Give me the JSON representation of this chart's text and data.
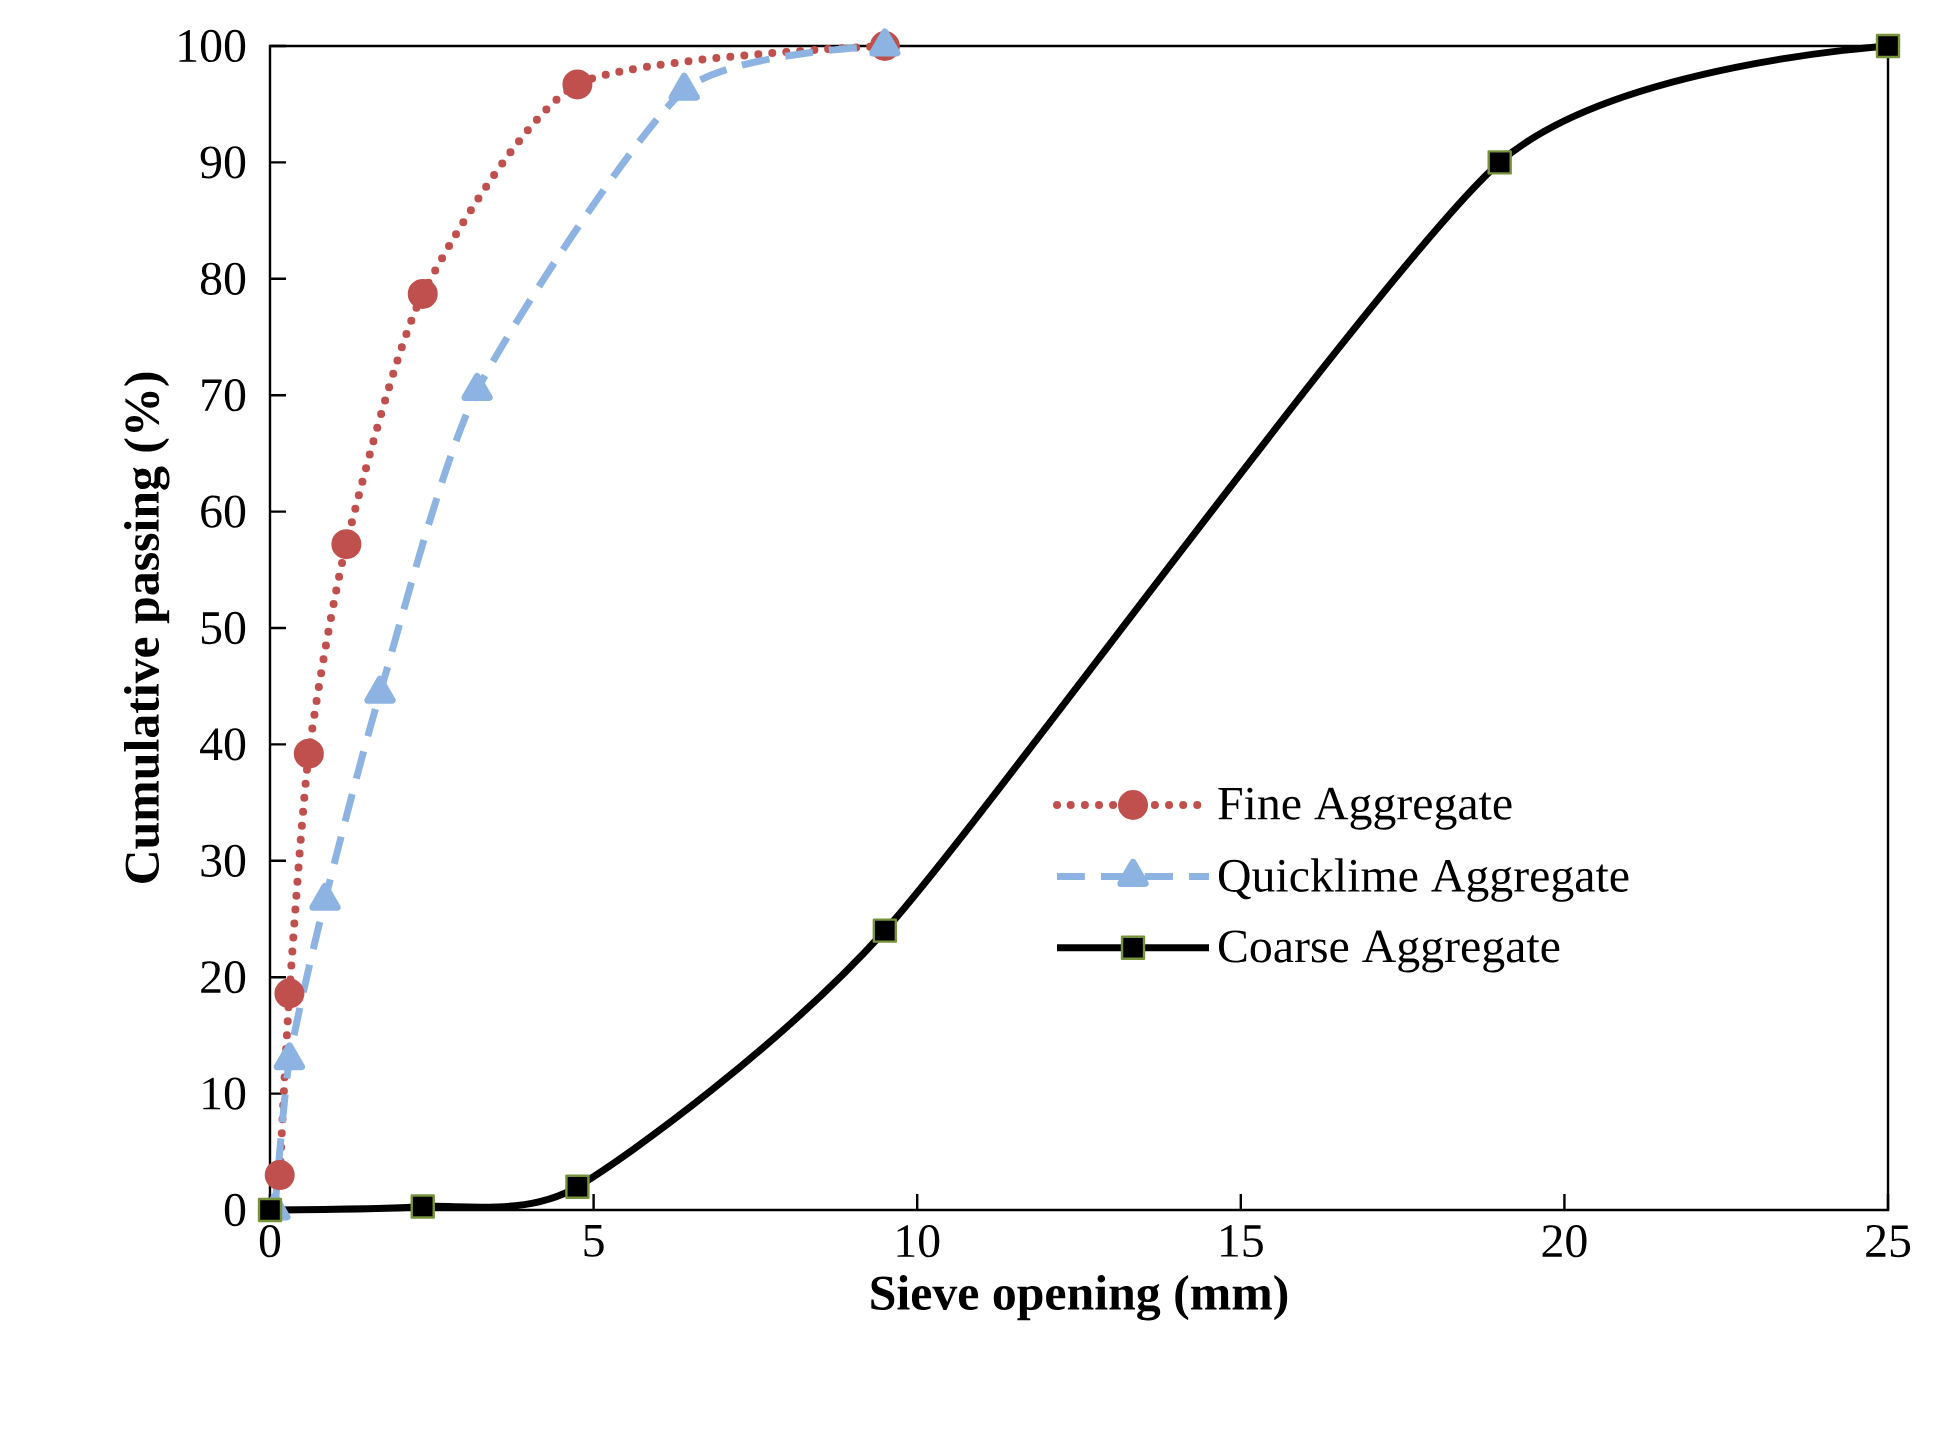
{
  "chart_data": {
    "type": "line",
    "xlabel": "Sieve opening (mm)",
    "ylabel": "Cumulative passing (%)",
    "xlim": [
      0,
      25
    ],
    "ylim": [
      0,
      100
    ],
    "xticks": [
      0,
      5,
      10,
      15,
      20,
      25
    ],
    "yticks": [
      0,
      10,
      20,
      30,
      40,
      50,
      60,
      70,
      80,
      90,
      100
    ],
    "legend": "right",
    "series": [
      {
        "name": "Fine Aggregate",
        "color": "#c0504d",
        "marker": "circle",
        "line_style": "dotted",
        "x": [
          0.15,
          0.3,
          0.6,
          1.18,
          2.36,
          4.75,
          9.5
        ],
        "values": [
          3,
          18.6,
          39.2,
          57.2,
          78.7,
          96.7,
          100
        ]
      },
      {
        "name": "Quicklime Aggregate",
        "color": "#8db3e2",
        "marker": "triangle",
        "line_style": "dashed",
        "x": [
          0.075,
          0.3,
          0.85,
          1.7,
          3.2,
          6.4,
          9.5
        ],
        "values": [
          0,
          12.9,
          26.6,
          44.4,
          70.4,
          96.2,
          100
        ]
      },
      {
        "name": "Coarse Aggregate",
        "color": "#000000",
        "marker": "square",
        "line_style": "solid",
        "x": [
          0,
          2.36,
          4.75,
          9.5,
          19,
          25
        ],
        "values": [
          0,
          0.3,
          2,
          24,
          90,
          100
        ]
      }
    ]
  }
}
